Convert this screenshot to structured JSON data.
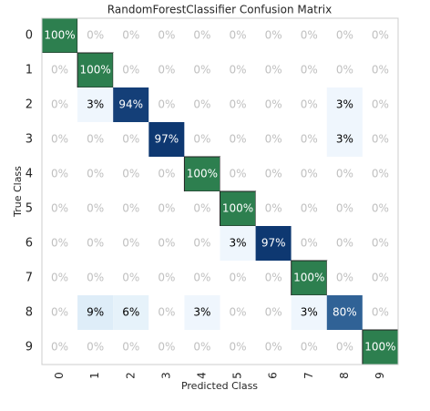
{
  "chart_data": {
    "type": "heatmap",
    "title": "RandomForestClassifier Confusion Matrix",
    "x_label": "Predicted Class",
    "y_label": "True Class",
    "categories": [
      "0",
      "1",
      "2",
      "3",
      "4",
      "5",
      "6",
      "7",
      "8",
      "9"
    ],
    "values": [
      [
        100,
        0,
        0,
        0,
        0,
        0,
        0,
        0,
        0,
        0
      ],
      [
        0,
        100,
        0,
        0,
        0,
        0,
        0,
        0,
        0,
        0
      ],
      [
        0,
        3,
        94,
        0,
        0,
        0,
        0,
        0,
        3,
        0
      ],
      [
        0,
        0,
        0,
        97,
        0,
        0,
        0,
        0,
        3,
        0
      ],
      [
        0,
        0,
        0,
        0,
        100,
        0,
        0,
        0,
        0,
        0
      ],
      [
        0,
        0,
        0,
        0,
        0,
        100,
        0,
        0,
        0,
        0
      ],
      [
        0,
        0,
        0,
        0,
        0,
        3,
        97,
        0,
        0,
        0
      ],
      [
        0,
        0,
        0,
        0,
        0,
        0,
        0,
        100,
        0,
        0
      ],
      [
        0,
        9,
        6,
        0,
        3,
        0,
        0,
        3,
        80,
        0
      ],
      [
        0,
        0,
        0,
        0,
        0,
        0,
        0,
        0,
        0,
        100
      ]
    ],
    "value_labels": [
      [
        "100%",
        "0%",
        "0%",
        "0%",
        "0%",
        "0%",
        "0%",
        "0%",
        "0%",
        "0%"
      ],
      [
        "0%",
        "100%",
        "0%",
        "0%",
        "0%",
        "0%",
        "0%",
        "0%",
        "0%",
        "0%"
      ],
      [
        "0%",
        "3%",
        "94%",
        "0%",
        "0%",
        "0%",
        "0%",
        "0%",
        "3%",
        "0%"
      ],
      [
        "0%",
        "0%",
        "0%",
        "97%",
        "0%",
        "0%",
        "0%",
        "0%",
        "3%",
        "0%"
      ],
      [
        "0%",
        "0%",
        "0%",
        "0%",
        "100%",
        "0%",
        "0%",
        "0%",
        "0%",
        "0%"
      ],
      [
        "0%",
        "0%",
        "0%",
        "0%",
        "0%",
        "100%",
        "0%",
        "0%",
        "0%",
        "0%"
      ],
      [
        "0%",
        "0%",
        "0%",
        "0%",
        "0%",
        "3%",
        "97%",
        "0%",
        "0%",
        "0%"
      ],
      [
        "0%",
        "0%",
        "0%",
        "0%",
        "0%",
        "0%",
        "0%",
        "100%",
        "0%",
        "0%"
      ],
      [
        "0%",
        "9%",
        "6%",
        "0%",
        "3%",
        "0%",
        "0%",
        "3%",
        "80%",
        "0%"
      ],
      [
        "0%",
        "0%",
        "0%",
        "0%",
        "0%",
        "0%",
        "0%",
        "0%",
        "0%",
        "100%"
      ]
    ],
    "colormap": [
      "#f7fbff",
      "#6baed6",
      "#08306b"
    ],
    "perfect_color": "#2d7f4f"
  }
}
